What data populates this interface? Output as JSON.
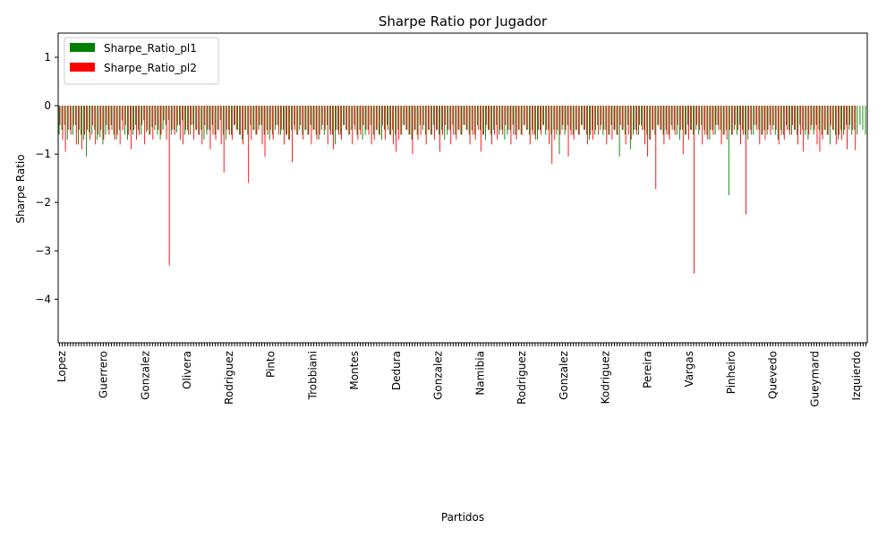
{
  "chart_data": {
    "type": "bar",
    "title": "Sharpe Ratio por Jugador",
    "xlabel": "Partidos",
    "ylabel": "Sharpe Ratio",
    "ylim": [
      -4.9,
      1.5
    ],
    "yticks": [
      1,
      0,
      -1,
      -2,
      -3,
      -4
    ],
    "ytick_labels": [
      "1",
      "0",
      "−1",
      "−2",
      "−3",
      "−4"
    ],
    "legend_position": "top-left",
    "colors": {
      "series1": "#008000",
      "series2": "#ff0000"
    },
    "categories_visible_sample": [
      "Lopez",
      "Guerrero",
      "Gonzalez",
      "Olivera",
      "Rodriguez",
      "Pinto",
      "Trobbiani",
      "Montes",
      "Dedura",
      "Gonzalez",
      "Namibia",
      "Rodriguez",
      "Gonzalez",
      "Kodriguez",
      "Pereira",
      "Vargas",
      "Pinheiro",
      "Quevedo",
      "Gueymard",
      "Izquierdo"
    ],
    "series": [
      {
        "name": "Sharpe_Ratio_pl1",
        "values": [
          -0.6,
          -0.5,
          -0.4,
          -0.7,
          -0.5,
          -0.6,
          -0.4,
          -0.8,
          -0.6,
          -0.7,
          -1.05,
          -0.55,
          -0.6,
          -0.5,
          -0.7,
          -0.65,
          -0.8,
          -0.6,
          -0.5,
          -0.4,
          -0.6,
          -0.7,
          -0.5,
          -0.3,
          -0.6,
          -0.7,
          -0.5,
          -0.6,
          -0.4,
          -0.5,
          -0.6,
          -0.3,
          -0.55,
          -0.6,
          -0.45,
          -0.5,
          -0.6,
          -0.7,
          -0.5,
          -0.4,
          -0.3,
          -0.6,
          -0.5,
          -0.55,
          -0.4,
          -0.3,
          -0.6,
          -0.5,
          -0.6,
          -0.4,
          -0.5,
          -0.6,
          -0.5,
          -0.7,
          -0.6,
          -0.5,
          -0.4,
          -0.6,
          -0.5,
          -0.3,
          -0.6,
          -0.7,
          -0.5,
          -0.6,
          -0.4,
          -0.5,
          -0.6,
          -0.7,
          -0.5,
          -0.6,
          -0.4,
          -0.5,
          -0.6,
          -0.5,
          -0.4,
          -0.6,
          -0.5,
          -0.7,
          -0.6,
          -0.5,
          -0.4,
          -0.6,
          -0.5,
          -0.6,
          -0.7,
          -0.5,
          -0.4,
          -0.6,
          -0.5,
          -0.6,
          -0.5,
          -0.6,
          -0.4,
          -0.5,
          -0.6,
          -0.7,
          -0.5,
          -0.6,
          -0.4,
          -0.5,
          -0.6,
          -0.8,
          -0.5,
          -0.6,
          -0.4,
          -0.5,
          -0.6,
          -0.5,
          -0.4,
          -0.6,
          -0.5,
          -0.7,
          -0.6,
          -0.5,
          -0.4,
          -0.6,
          -0.5,
          -0.6,
          -0.7,
          -0.5,
          -0.4,
          -0.6,
          -0.5,
          -0.6,
          -0.5,
          -0.6,
          -0.4,
          -0.5,
          -0.6,
          -0.7,
          -0.5,
          -0.6,
          -0.4,
          -0.5,
          -0.6,
          -0.5,
          -0.6,
          -0.4,
          -0.5,
          -0.6,
          -0.5,
          -0.7,
          -0.6,
          -0.5,
          -0.4,
          -0.6,
          -0.5,
          -0.6,
          -0.4,
          -0.5,
          -0.6,
          -0.5,
          -0.6,
          -0.4,
          -0.5,
          -0.6,
          -0.7,
          -0.5,
          -0.6,
          -0.5,
          -0.4,
          -0.6,
          -0.5,
          -0.7,
          -0.6,
          -0.5,
          -0.4,
          -0.6,
          -0.5,
          -0.6,
          -0.4,
          -0.5,
          -0.6,
          -0.5,
          -0.6,
          -0.7,
          -0.5,
          -0.4,
          -0.6,
          -0.5,
          -0.6,
          -0.5,
          -0.6,
          -1.0,
          -0.5,
          -0.6,
          -0.4,
          -0.5,
          -0.6,
          -0.5,
          -0.6,
          -0.4,
          -0.5,
          -0.6,
          -0.7,
          -0.5,
          -0.6,
          -0.4,
          -0.5,
          -0.6,
          -0.5,
          -0.6,
          -0.4,
          -0.5,
          -0.6,
          -1.05,
          -0.5,
          -0.6,
          -0.4,
          -0.9,
          -0.6,
          -0.5,
          -0.6,
          -0.4,
          -0.5,
          -0.6,
          -0.7,
          -0.5,
          -0.6,
          -0.4,
          -0.5,
          -0.6,
          -0.5,
          -0.6,
          -0.4,
          -0.5,
          -0.6,
          -0.7,
          -0.5,
          -0.6,
          -0.4,
          -0.5,
          -0.6,
          -0.5,
          -0.6,
          -0.4,
          -0.5,
          -0.6,
          -0.7,
          -0.5,
          -0.6,
          -0.4,
          -0.5,
          -0.6,
          -0.5,
          -1.85,
          -0.6,
          -0.5,
          -0.6,
          -0.4,
          -0.5,
          -0.6,
          -0.7,
          -0.5,
          -0.6,
          -0.4,
          -0.5,
          -0.6,
          -0.5,
          -0.6,
          -0.4,
          -0.5,
          -0.6,
          -0.7,
          -0.5,
          -0.6,
          -0.4,
          -0.5,
          -0.6,
          -0.5,
          -0.6,
          -0.4,
          -0.5,
          -0.6,
          -0.7,
          -0.5,
          -0.6,
          -0.4,
          -0.5,
          -0.6,
          -0.5,
          -0.6,
          -0.8,
          -0.5,
          -0.6,
          -0.7,
          -0.5,
          -0.6,
          -0.4,
          -0.5,
          -0.6,
          -0.5,
          -0.6,
          -0.4,
          -0.5,
          -0.6
        ]
      },
      {
        "name": "Sharpe_Ratio_pl2",
        "values": [
          -0.4,
          -0.7,
          -0.95,
          -0.5,
          -0.6,
          -0.4,
          -0.8,
          -0.5,
          -0.9,
          -0.6,
          -0.5,
          -0.7,
          -0.4,
          -0.8,
          -0.6,
          -0.5,
          -0.7,
          -0.4,
          -0.6,
          -0.5,
          -0.7,
          -0.6,
          -0.8,
          -0.5,
          -0.4,
          -0.6,
          -0.9,
          -0.5,
          -0.7,
          -0.6,
          -0.4,
          -0.8,
          -0.5,
          -0.6,
          -0.7,
          -0.4,
          -0.5,
          -0.6,
          -0.3,
          -0.7,
          -3.3,
          -0.5,
          -0.6,
          -0.4,
          -0.7,
          -0.8,
          -0.5,
          -0.6,
          -0.4,
          -0.7,
          -0.5,
          -0.6,
          -0.8,
          -0.4,
          -0.5,
          -0.9,
          -0.6,
          -0.7,
          -0.5,
          -0.8,
          -1.38,
          -0.5,
          -0.6,
          -0.7,
          -0.4,
          -0.5,
          -0.6,
          -0.8,
          -0.5,
          -1.6,
          -0.7,
          -0.5,
          -0.6,
          -0.4,
          -0.8,
          -1.05,
          -0.6,
          -0.5,
          -0.7,
          -0.4,
          -0.6,
          -0.5,
          -0.8,
          -0.6,
          -0.7,
          -1.17,
          -0.5,
          -0.6,
          -0.4,
          -0.7,
          -0.5,
          -0.6,
          -0.8,
          -0.5,
          -0.7,
          -0.6,
          -0.4,
          -0.5,
          -0.8,
          -0.6,
          -0.9,
          -0.5,
          -0.6,
          -0.7,
          -0.4,
          -0.5,
          -0.6,
          -0.8,
          -0.5,
          -0.7,
          -0.6,
          -0.4,
          -0.5,
          -0.6,
          -0.8,
          -0.7,
          -0.5,
          -0.6,
          -0.4,
          -0.7,
          -0.5,
          -0.6,
          -0.8,
          -0.95,
          -0.7,
          -0.6,
          -0.4,
          -0.5,
          -0.6,
          -1.0,
          -0.5,
          -0.7,
          -0.6,
          -0.4,
          -0.8,
          -0.5,
          -0.6,
          -0.7,
          -0.5,
          -0.95,
          -0.6,
          -0.4,
          -0.5,
          -0.8,
          -0.6,
          -0.7,
          -0.5,
          -0.6,
          -0.4,
          -0.5,
          -0.8,
          -0.6,
          -0.7,
          -0.5,
          -0.95,
          -0.6,
          -0.4,
          -0.5,
          -0.8,
          -0.6,
          -0.7,
          -0.5,
          -0.6,
          -0.4,
          -0.5,
          -0.8,
          -0.6,
          -0.7,
          -0.5,
          -0.6,
          -0.4,
          -0.5,
          -0.8,
          -0.6,
          -0.7,
          -0.5,
          -0.6,
          -0.4,
          -0.5,
          -0.8,
          -1.2,
          -0.7,
          -0.5,
          -0.6,
          -0.4,
          -0.5,
          -1.05,
          -0.6,
          -0.7,
          -0.5,
          -0.6,
          -0.4,
          -0.5,
          -0.8,
          -0.6,
          -0.7,
          -0.5,
          -0.6,
          -0.4,
          -0.5,
          -0.8,
          -0.6,
          -0.7,
          -0.5,
          -0.6,
          -0.4,
          -0.5,
          -0.8,
          -0.6,
          -0.7,
          -0.5,
          -0.6,
          -0.4,
          -0.5,
          -0.8,
          -1.05,
          -0.7,
          -0.5,
          -1.72,
          -0.4,
          -0.5,
          -0.8,
          -0.6,
          -0.7,
          -0.5,
          -0.6,
          -0.4,
          -0.5,
          -1.0,
          -0.6,
          -0.7,
          -0.5,
          -3.47,
          -0.4,
          -0.5,
          -0.8,
          -0.6,
          -0.7,
          -0.5,
          -0.6,
          -0.4,
          -0.5,
          -0.8,
          -0.6,
          -0.7,
          -0.5,
          -0.6,
          -0.4,
          -0.5,
          -0.8,
          -0.6,
          -2.25,
          -0.5,
          -0.6,
          -0.4,
          -0.5,
          -0.8,
          -0.6,
          -0.7,
          -0.5,
          -0.6,
          -0.4,
          -0.5,
          -0.8,
          -0.6,
          -0.7,
          -0.5,
          -0.6,
          -0.4,
          -0.5,
          -0.8,
          -0.6,
          -0.95,
          -0.5,
          -0.6,
          -0.4,
          -0.5,
          -0.8,
          -0.95,
          -0.7,
          -0.5,
          -0.6,
          -0.4,
          -0.5,
          -0.8,
          -0.6,
          -0.7,
          -0.5,
          -0.9,
          -0.4,
          -0.5,
          -0.92
        ]
      }
    ]
  }
}
